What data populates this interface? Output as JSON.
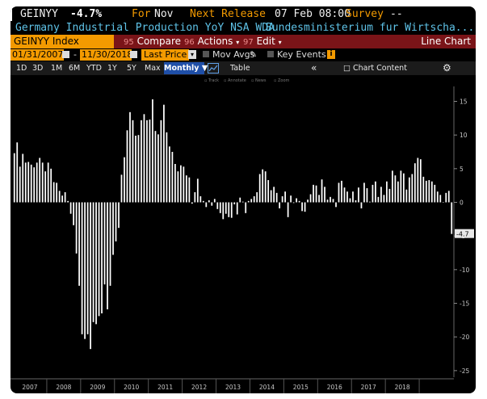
{
  "header": {
    "ticker": "GEINYY",
    "change": "-4.7%",
    "for_label": "For",
    "for_value": "Nov",
    "next_release_label": "Next Release",
    "next_release_value": "07 Feb 08:00",
    "survey_label": "Survey",
    "survey_value": "--"
  },
  "subheader": {
    "description": "Germany Industrial Production YoY NSA WDA",
    "source": "Bundesministerium fur Wirtscha..."
  },
  "toolbar": {
    "security": "GEINYY Index",
    "compare_num": "95",
    "compare_label": "Compare",
    "actions_num": "96",
    "actions_label": "Actions",
    "edit_num": "97",
    "edit_label": "Edit",
    "chart_type": "Line Chart"
  },
  "controls": {
    "start_date": "01/31/2007",
    "end_date": "11/30/2018",
    "field": "Last Price",
    "mov_avgs": "Mov Avgs",
    "key_events": "Key Events"
  },
  "periods": {
    "items": [
      "1D",
      "3D",
      "1M",
      "6M",
      "YTD",
      "1Y",
      "5Y",
      "Max"
    ],
    "frequency": "Monthly",
    "table_label": "Table",
    "chart_content": "Chart Content"
  },
  "legend_mini": [
    "Track",
    "Annotate",
    "News",
    "Zoom"
  ],
  "colors": {
    "background": "#000000",
    "bars": "#ffffff",
    "accent": "#f39a00",
    "toolbar_red": "#7a1418",
    "description_blue": "#5fc3e8",
    "last_value_label": "#e8e8e8"
  },
  "icons": [
    "dropdown-arrow-icon",
    "calendar-icon",
    "pencil-icon",
    "key-events-icon",
    "line-chart-icon",
    "collapse-icon",
    "chart-content-icon",
    "gear-icon"
  ],
  "chart_data": {
    "type": "bar",
    "x_start": "2007-01",
    "frequency": "monthly",
    "x_tick_labels": [
      "2007",
      "2008",
      "2009",
      "2010",
      "2011",
      "2012",
      "2013",
      "2014",
      "2015",
      "2016",
      "2017",
      "2018"
    ],
    "y_ticks": [
      15,
      10,
      5,
      0,
      -5,
      -10,
      -15,
      -20,
      -25
    ],
    "ylim": [
      -25.5,
      16.5
    ],
    "last_value_label": "-4.7",
    "values": [
      7.3,
      8.9,
      5.3,
      7.2,
      5.9,
      6.0,
      5.6,
      5.2,
      5.9,
      6.6,
      5.9,
      4.6,
      5.9,
      5.0,
      3.0,
      2.9,
      1.7,
      1.0,
      1.5,
      0.2,
      -1.7,
      -3.4,
      -7.6,
      -12.4,
      -19.6,
      -20.3,
      -19.6,
      -21.8,
      -17.8,
      -18.1,
      -16.9,
      -16.5,
      -12.2,
      -15.9,
      -12.4,
      -7.8,
      -5.8,
      -3.8,
      4.1,
      6.7,
      10.7,
      13.4,
      12.2,
      9.9,
      10.0,
      12.2,
      13.1,
      12.2,
      12.3,
      15.3,
      10.6,
      10.1,
      12.2,
      14.5,
      10.4,
      8.3,
      7.5,
      5.7,
      4.6,
      5.5,
      5.3,
      4.0,
      3.7,
      -0.2,
      1.5,
      3.5,
      0.9,
      0.2,
      -0.7,
      0.3,
      -0.5,
      0.5,
      -1.0,
      -1.6,
      -2.5,
      -1.7,
      -2.2,
      -2.3,
      -0.3,
      -1.8,
      0.7,
      0.1,
      -1.6,
      0.2,
      0.5,
      0.9,
      1.5,
      4.2,
      4.9,
      4.6,
      3.3,
      1.8,
      2.3,
      1.4,
      -0.9,
      0.9,
      1.6,
      -2.2,
      1.0,
      -0.1,
      0.6,
      0.2,
      -1.3,
      -1.4,
      0.4,
      1.2,
      2.6,
      2.5,
      1.1,
      3.4,
      2.3,
      0.4,
      0.8,
      0.5,
      -0.7,
      2.9,
      3.2,
      2.2,
      1.6,
      0.6,
      1.6,
      0.3,
      2.2,
      -0.9,
      2.9,
      2.1,
      0.1,
      2.6,
      3.1,
      0.8,
      2.3,
      1.1,
      3.1,
      2.0,
      4.7,
      4.0,
      3.1,
      4.7,
      4.3,
      1.9,
      3.7,
      4.2,
      5.8,
      6.6,
      6.4,
      3.8,
      3.2,
      3.3,
      3.1,
      2.6,
      1.6,
      1.1,
      0.0,
      1.4,
      1.7,
      -4.7
    ]
  }
}
